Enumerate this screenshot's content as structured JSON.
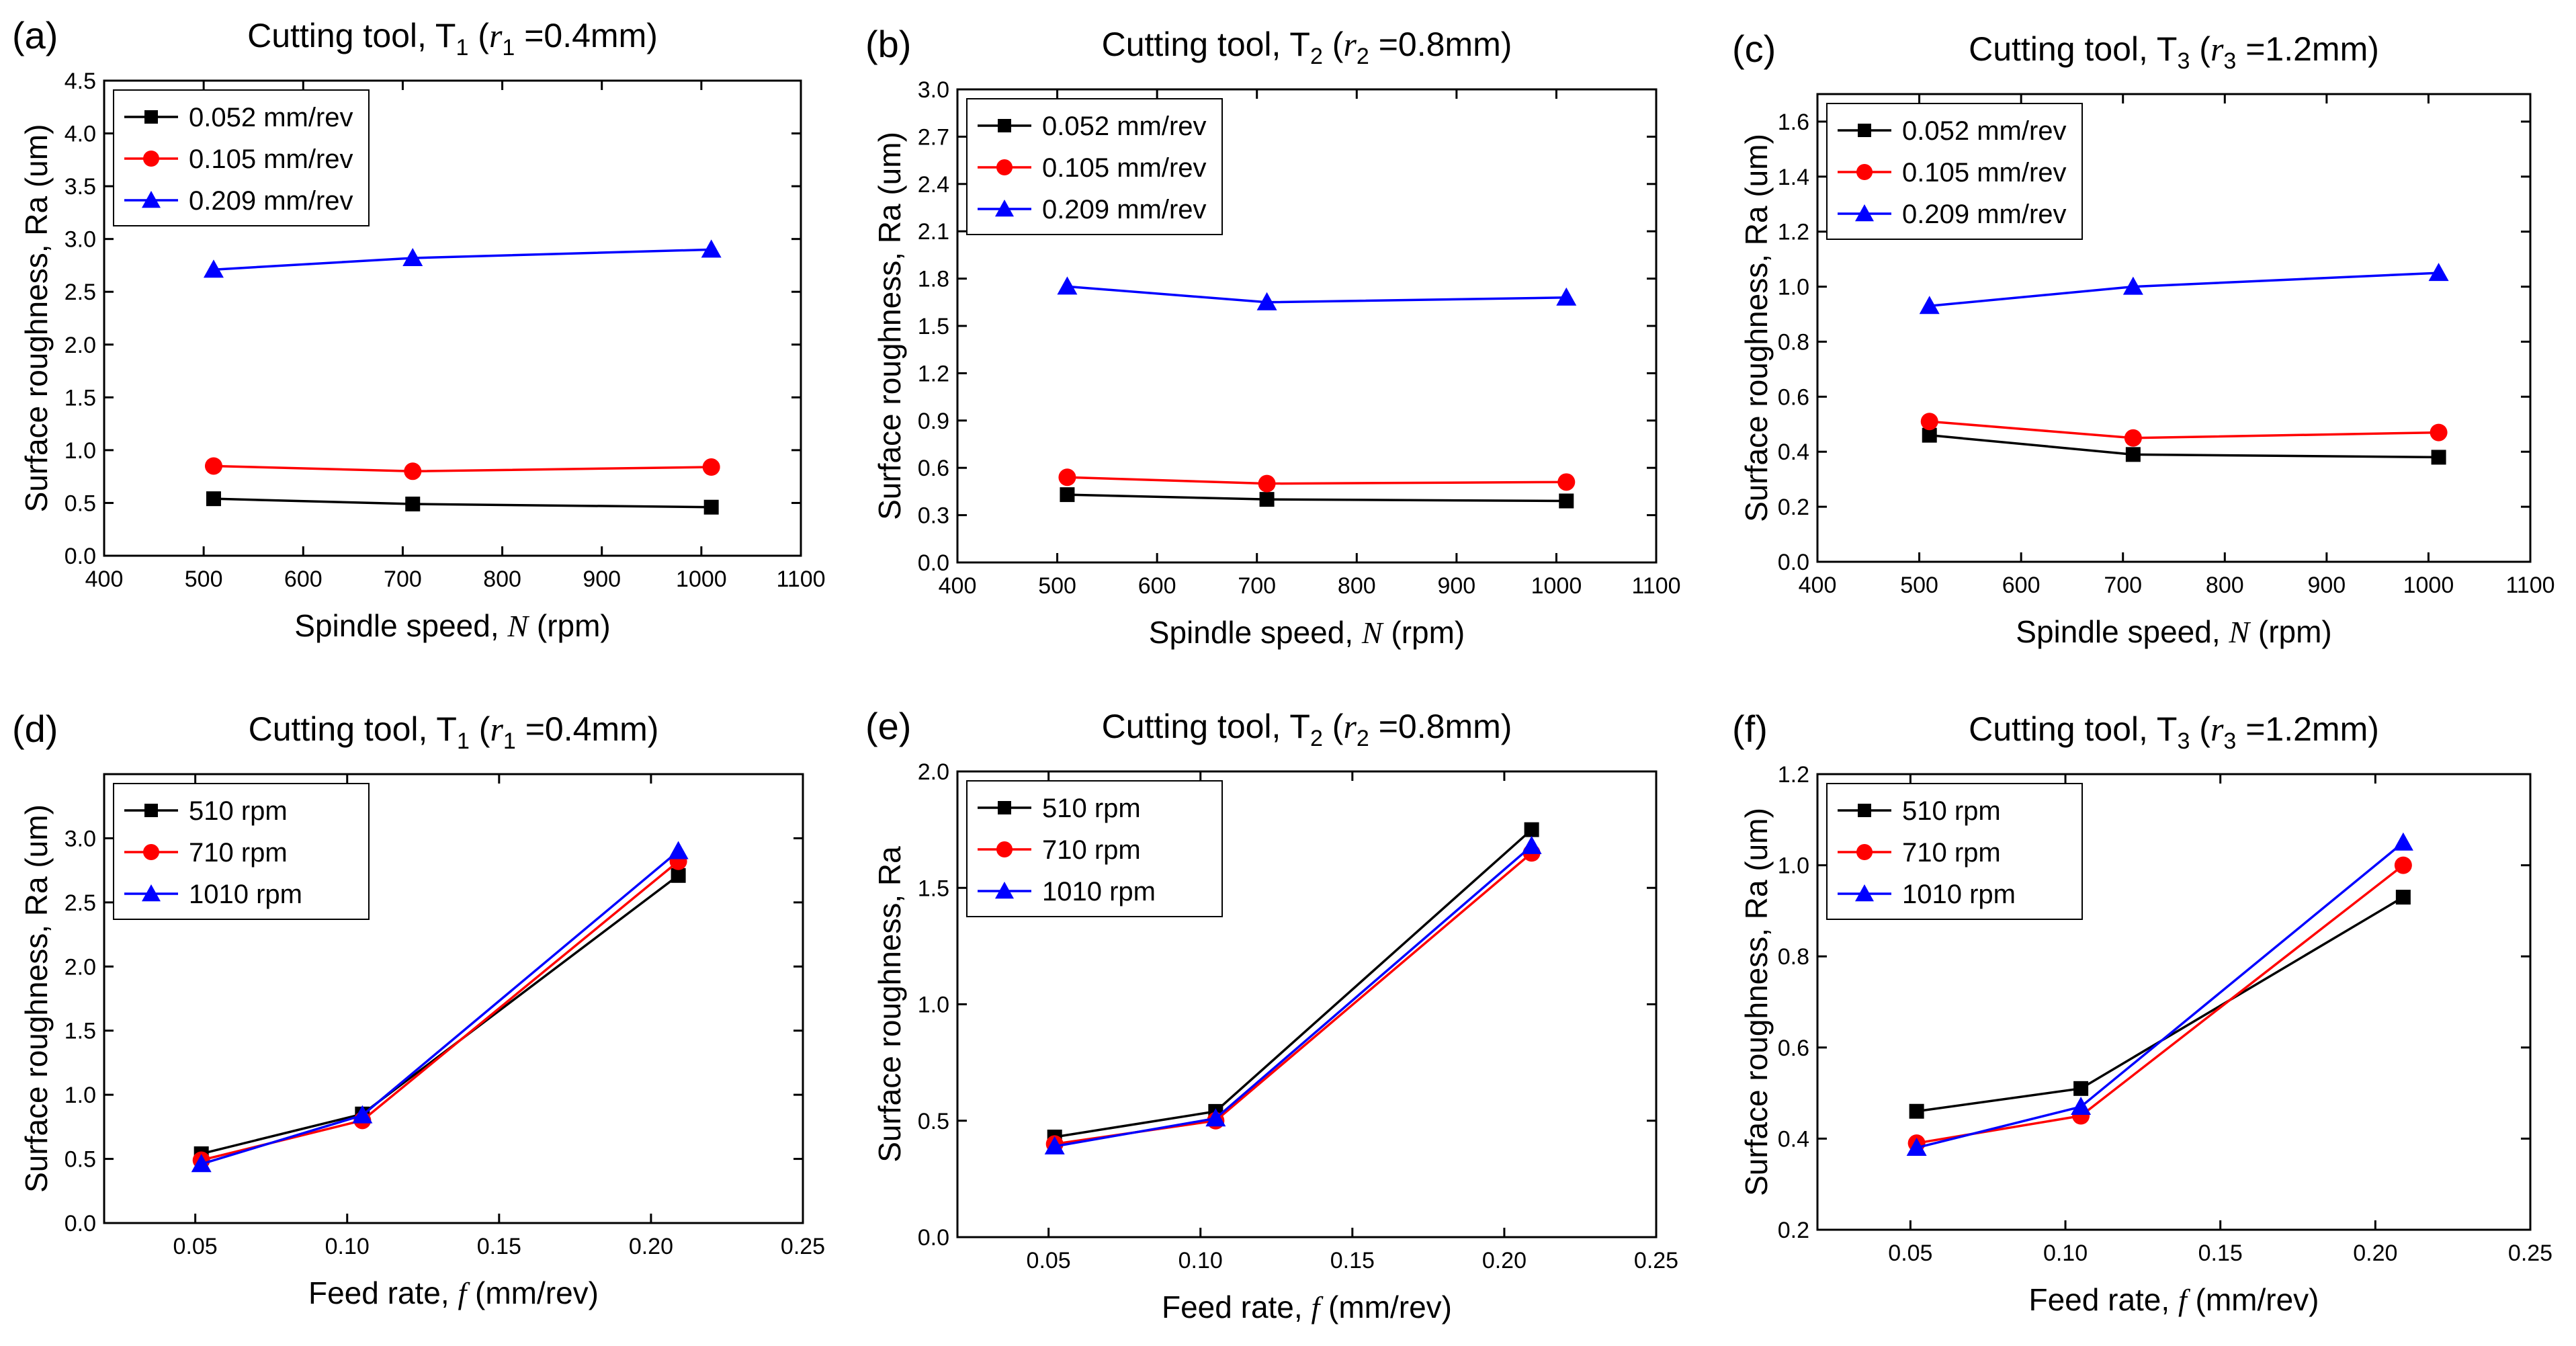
{
  "colors": {
    "black": "#000000",
    "red": "#ff0000",
    "blue": "#0000ff"
  },
  "chart_data": [
    {
      "id": "a",
      "letter": "(a)",
      "type": "line",
      "title": {
        "prefix": "Cutting tool, T",
        "sub": "1",
        "mid": " (",
        "var": "r",
        "varsub": "1",
        "suffix": " =0.4mm)"
      },
      "xlabel": {
        "text": "Spindle speed, ",
        "var": "N",
        "suffix": " (rpm)"
      },
      "ylabel": "Surface roughness, Ra (um)",
      "xlim": [
        400,
        1100
      ],
      "xticks": [
        400,
        500,
        600,
        700,
        800,
        900,
        1000,
        1100
      ],
      "xtick_labels": [
        "400",
        "500",
        "600",
        "700",
        "800",
        "900",
        "1000",
        "1100"
      ],
      "ylim": [
        0,
        4.5
      ],
      "yticks": [
        0,
        0.5,
        1.0,
        1.5,
        2.0,
        2.5,
        3.0,
        3.5,
        4.0,
        4.5
      ],
      "ytick_labels": [
        "0.0",
        "0.5",
        "1.0",
        "1.5",
        "2.0",
        "2.5",
        "3.0",
        "3.5",
        "4.0",
        "4.5"
      ],
      "x": [
        510,
        710,
        1010
      ],
      "series": [
        {
          "name": "0.052 mm/rev",
          "color": "#000000",
          "marker": "square",
          "values": [
            0.54,
            0.49,
            0.46
          ]
        },
        {
          "name": "0.105 mm/rev",
          "color": "#ff0000",
          "marker": "circle",
          "values": [
            0.85,
            0.8,
            0.84
          ]
        },
        {
          "name": "0.209  mm/rev",
          "color": "#0000ff",
          "marker": "triangle",
          "values": [
            2.71,
            2.82,
            2.9
          ]
        }
      ],
      "legend": "top-left"
    },
    {
      "id": "b",
      "letter": "(b)",
      "type": "line",
      "title": {
        "prefix": "Cutting tool, T",
        "sub": "2",
        "mid": " (",
        "var": "r",
        "varsub": "2",
        "suffix": " =0.8mm)"
      },
      "xlabel": {
        "text": "Spindle speed, ",
        "var": "N",
        "suffix": " (rpm)"
      },
      "ylabel": "Surface roughness, Ra (um)",
      "xlim": [
        400,
        1100
      ],
      "xticks": [
        400,
        500,
        600,
        700,
        800,
        900,
        1000,
        1100
      ],
      "xtick_labels": [
        "400",
        "500",
        "600",
        "700",
        "800",
        "900",
        "1000",
        "1100"
      ],
      "ylim": [
        0,
        3.0
      ],
      "yticks": [
        0,
        0.3,
        0.6,
        0.9,
        1.2,
        1.5,
        1.8,
        2.1,
        2.4,
        2.7,
        3.0
      ],
      "ytick_labels": [
        "0.0",
        "0.3",
        "0.6",
        "0.9",
        "1.2",
        "1.5",
        "1.8",
        "2.1",
        "2.4",
        "2.7",
        "3.0"
      ],
      "x": [
        510,
        710,
        1010
      ],
      "series": [
        {
          "name": "0.052 mm/rev",
          "color": "#000000",
          "marker": "square",
          "values": [
            0.43,
            0.4,
            0.39
          ]
        },
        {
          "name": "0.105 mm/rev",
          "color": "#ff0000",
          "marker": "circle",
          "values": [
            0.54,
            0.5,
            0.51
          ]
        },
        {
          "name": "0.209  mm/rev",
          "color": "#0000ff",
          "marker": "triangle",
          "values": [
            1.75,
            1.65,
            1.68
          ]
        }
      ],
      "legend": "top-left"
    },
    {
      "id": "c",
      "letter": "(c)",
      "type": "line",
      "title": {
        "prefix": "Cutting tool, T",
        "sub": "3",
        "mid": " (",
        "var": "r",
        "varsub": "3",
        "suffix": " =1.2mm)"
      },
      "xlabel": {
        "text": "Spindle speed, ",
        "var": "N",
        "suffix": " (rpm)"
      },
      "ylabel": "Surface roughness, Ra (um)",
      "xlim": [
        400,
        1100
      ],
      "xticks": [
        400,
        500,
        600,
        700,
        800,
        900,
        1000,
        1100
      ],
      "xtick_labels": [
        "400",
        "500",
        "600",
        "700",
        "800",
        "900",
        "1000",
        "1100"
      ],
      "ylim": [
        0,
        1.7
      ],
      "yticks": [
        0,
        0.2,
        0.4,
        0.6,
        0.8,
        1.0,
        1.2,
        1.4,
        1.6
      ],
      "ytick_labels": [
        "0.0",
        "0.2",
        "0.4",
        "0.6",
        "0.8",
        "1.0",
        "1.2",
        "1.4",
        "1.6"
      ],
      "x": [
        510,
        710,
        1010
      ],
      "series": [
        {
          "name": "0.052 mm/rev",
          "color": "#000000",
          "marker": "square",
          "values": [
            0.46,
            0.39,
            0.38
          ]
        },
        {
          "name": "0.105 mm/rev",
          "color": "#ff0000",
          "marker": "circle",
          "values": [
            0.51,
            0.45,
            0.47
          ]
        },
        {
          "name": "0.209  mm/rev",
          "color": "#0000ff",
          "marker": "triangle",
          "values": [
            0.93,
            1.0,
            1.05
          ]
        }
      ],
      "legend": "top-left"
    },
    {
      "id": "d",
      "letter": "(d)",
      "type": "line",
      "title": {
        "prefix": "Cutting tool, T",
        "sub": "1",
        "mid": " (",
        "var": "r",
        "varsub": "1",
        "suffix": " =0.4mm)"
      },
      "xlabel": {
        "text": "Feed rate, ",
        "var": "f",
        "suffix": " (mm/rev)"
      },
      "ylabel": "Surface roughness, Ra (um)",
      "xlim": [
        0.02,
        0.25
      ],
      "xticks": [
        0.05,
        0.1,
        0.15,
        0.2,
        0.25
      ],
      "xtick_labels": [
        "0.05",
        "0.10",
        "0.15",
        "0.20",
        "0.25"
      ],
      "ylim": [
        0,
        3.5
      ],
      "yticks": [
        0,
        0.5,
        1.0,
        1.5,
        2.0,
        2.5,
        3.0
      ],
      "ytick_labels": [
        "0.0",
        "0.5",
        "1.0",
        "1.5",
        "2.0",
        "2.5",
        "3.0"
      ],
      "x": [
        0.052,
        0.105,
        0.209
      ],
      "series": [
        {
          "name": "510 rpm",
          "color": "#000000",
          "marker": "square",
          "values": [
            0.54,
            0.85,
            2.71
          ]
        },
        {
          "name": "710 rpm",
          "color": "#ff0000",
          "marker": "circle",
          "values": [
            0.49,
            0.8,
            2.82
          ]
        },
        {
          "name": "1010 rpm",
          "color": "#0000ff",
          "marker": "triangle",
          "values": [
            0.46,
            0.84,
            2.9
          ]
        }
      ],
      "legend": "top-left"
    },
    {
      "id": "e",
      "letter": "(e)",
      "type": "line",
      "title": {
        "prefix": "Cutting tool, T",
        "sub": "2",
        "mid": " (",
        "var": "r",
        "varsub": "2",
        "suffix": " =0.8mm)"
      },
      "xlabel": {
        "text": "Feed rate, ",
        "var": "f",
        "suffix": " (mm/rev)"
      },
      "ylabel": "Surface roughness, Ra",
      "xlim": [
        0.02,
        0.25
      ],
      "xticks": [
        0.05,
        0.1,
        0.15,
        0.2,
        0.25
      ],
      "xtick_labels": [
        "0.05",
        "0.10",
        "0.15",
        "0.20",
        "0.25"
      ],
      "ylim": [
        0,
        2.0
      ],
      "yticks": [
        0,
        0.5,
        1.0,
        1.5,
        2.0
      ],
      "ytick_labels": [
        "0.0",
        "0.5",
        "1.0",
        "1.5",
        "2.0"
      ],
      "x": [
        0.052,
        0.105,
        0.209
      ],
      "series": [
        {
          "name": "510 rpm",
          "color": "#000000",
          "marker": "square",
          "values": [
            0.43,
            0.54,
            1.75
          ]
        },
        {
          "name": "710 rpm",
          "color": "#ff0000",
          "marker": "circle",
          "values": [
            0.4,
            0.5,
            1.65
          ]
        },
        {
          "name": "1010 rpm",
          "color": "#0000ff",
          "marker": "triangle",
          "values": [
            0.39,
            0.51,
            1.68
          ]
        }
      ],
      "legend": "top-left"
    },
    {
      "id": "f",
      "letter": "(f)",
      "type": "line",
      "title": {
        "prefix": "Cutting tool, T",
        "sub": "3",
        "mid": " (",
        "var": "r",
        "varsub": "3",
        "suffix": " =1.2mm)"
      },
      "xlabel": {
        "text": "Feed rate, ",
        "var": "f",
        "suffix": " (mm/rev)"
      },
      "ylabel": "Surface roughness, Ra (um)",
      "xlim": [
        0.02,
        0.25
      ],
      "xticks": [
        0.05,
        0.1,
        0.15,
        0.2,
        0.25
      ],
      "xtick_labels": [
        "0.05",
        "0.10",
        "0.15",
        "0.20",
        "0.25"
      ],
      "ylim": [
        0.2,
        1.2
      ],
      "yticks": [
        0.2,
        0.4,
        0.6,
        0.8,
        1.0,
        1.2
      ],
      "ytick_labels": [
        "0.2",
        "0.4",
        "0.6",
        "0.8",
        "1.0",
        "1.2"
      ],
      "x": [
        0.052,
        0.105,
        0.209
      ],
      "series": [
        {
          "name": "510 rpm",
          "color": "#000000",
          "marker": "square",
          "values": [
            0.46,
            0.51,
            0.93
          ]
        },
        {
          "name": "710 rpm",
          "color": "#ff0000",
          "marker": "circle",
          "values": [
            0.39,
            0.45,
            1.0
          ]
        },
        {
          "name": "1010 rpm",
          "color": "#0000ff",
          "marker": "triangle",
          "values": [
            0.38,
            0.47,
            1.05
          ]
        }
      ],
      "legend": "top-left"
    }
  ]
}
